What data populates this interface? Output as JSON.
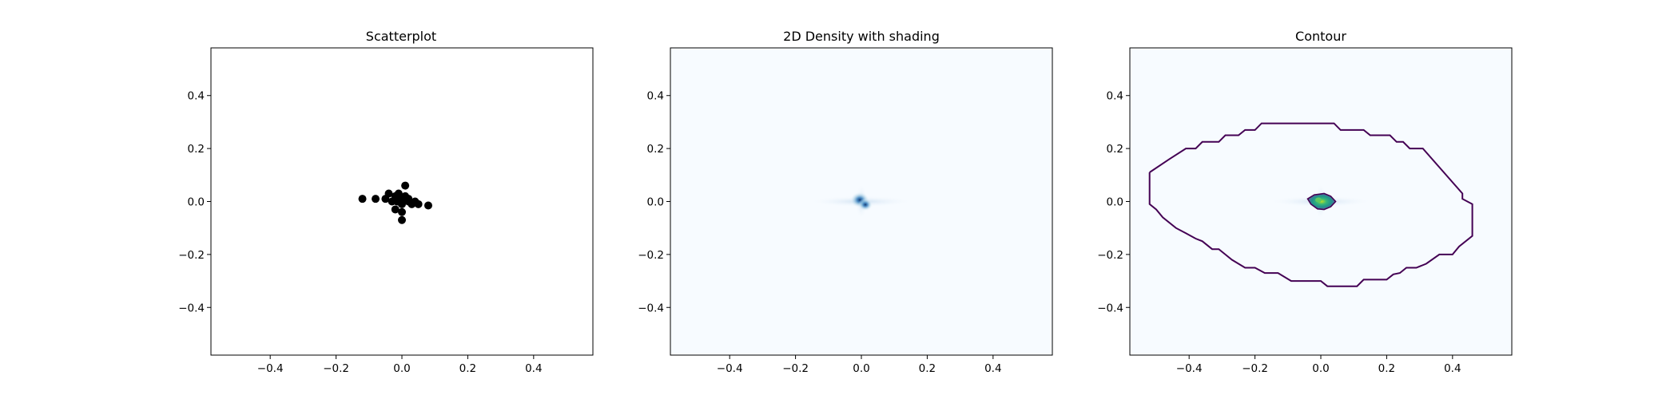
{
  "chart_data": [
    {
      "type": "scatter",
      "title": "Scatterplot",
      "xlabel": "",
      "ylabel": "",
      "xlim": [
        -0.58,
        0.58
      ],
      "ylim": [
        -0.58,
        0.58
      ],
      "xticks": [
        -0.4,
        -0.2,
        0.0,
        0.2,
        0.4
      ],
      "yticks": [
        -0.4,
        -0.2,
        0.0,
        0.2,
        0.4
      ],
      "xtick_labels": [
        "−0.4",
        "−0.2",
        "0.0",
        "0.2",
        "0.4"
      ],
      "ytick_labels": [
        "−0.4",
        "−0.2",
        "0.0",
        "0.2",
        "0.4"
      ],
      "marker_color": "#000000",
      "grid": false,
      "points": [
        [
          -0.12,
          0.01
        ],
        [
          -0.08,
          0.01
        ],
        [
          -0.05,
          0.01
        ],
        [
          -0.04,
          0.03
        ],
        [
          -0.03,
          0.0
        ],
        [
          -0.02,
          -0.03
        ],
        [
          -0.02,
          0.02
        ],
        [
          -0.01,
          0.0
        ],
        [
          -0.01,
          0.03
        ],
        [
          0.0,
          0.01
        ],
        [
          0.0,
          -0.01
        ],
        [
          0.0,
          -0.04
        ],
        [
          0.0,
          -0.07
        ],
        [
          0.01,
          0.02
        ],
        [
          0.01,
          0.06
        ],
        [
          0.02,
          0.0
        ],
        [
          0.02,
          0.01
        ],
        [
          0.03,
          -0.01
        ],
        [
          0.04,
          0.0
        ],
        [
          0.05,
          -0.01
        ],
        [
          0.08,
          -0.015
        ],
        [
          -0.015,
          0.0
        ]
      ]
    },
    {
      "type": "heatmap",
      "title": "2D Density with shading",
      "xlabel": "",
      "ylabel": "",
      "xlim": [
        -0.58,
        0.58
      ],
      "ylim": [
        -0.58,
        0.58
      ],
      "xticks": [
        -0.4,
        -0.2,
        0.0,
        0.2,
        0.4
      ],
      "yticks": [
        -0.4,
        -0.2,
        0.0,
        0.2,
        0.4
      ],
      "xtick_labels": [
        "−0.4",
        "−0.2",
        "0.0",
        "0.2",
        "0.4"
      ],
      "ytick_labels": [
        "−0.4",
        "−0.2",
        "0.0",
        "0.2",
        "0.4"
      ],
      "colormap": "Blues",
      "background_color": "#f7fbff",
      "density_peak": [
        0.0,
        0.0
      ],
      "grid": false
    },
    {
      "type": "heatmap",
      "title": "Contour",
      "xlabel": "",
      "ylabel": "",
      "xlim": [
        -0.58,
        0.58
      ],
      "ylim": [
        -0.58,
        0.58
      ],
      "xticks": [
        -0.4,
        -0.2,
        0.0,
        0.2,
        0.4
      ],
      "yticks": [
        -0.4,
        -0.2,
        0.0,
        0.2,
        0.4
      ],
      "xtick_labels": [
        "−0.4",
        "−0.2",
        "0.0",
        "0.2",
        "0.4"
      ],
      "ytick_labels": [
        "−0.4",
        "−0.2",
        "0.0",
        "0.2",
        "0.4"
      ],
      "colormap": "viridis",
      "background_color": "#f7fbff",
      "outer_contour_color": "#440154",
      "inner_contour_color": "#3b528b",
      "core_color": "#5ec962",
      "outer_contour": [
        [
          -0.52,
          0.11
        ],
        [
          -0.46,
          0.16
        ],
        [
          -0.41,
          0.2
        ],
        [
          -0.38,
          0.2
        ],
        [
          -0.36,
          0.225
        ],
        [
          -0.31,
          0.225
        ],
        [
          -0.29,
          0.25
        ],
        [
          -0.25,
          0.25
        ],
        [
          -0.23,
          0.27
        ],
        [
          -0.2,
          0.27
        ],
        [
          -0.18,
          0.295
        ],
        [
          0.04,
          0.295
        ],
        [
          0.06,
          0.27
        ],
        [
          0.13,
          0.27
        ],
        [
          0.15,
          0.25
        ],
        [
          0.21,
          0.25
        ],
        [
          0.23,
          0.225
        ],
        [
          0.25,
          0.225
        ],
        [
          0.27,
          0.2
        ],
        [
          0.31,
          0.2
        ],
        [
          0.43,
          0.03
        ],
        [
          0.43,
          0.01
        ],
        [
          0.46,
          -0.01
        ],
        [
          0.46,
          -0.13
        ],
        [
          0.42,
          -0.17
        ],
        [
          0.4,
          -0.2
        ],
        [
          0.36,
          -0.2
        ],
        [
          0.32,
          -0.235
        ],
        [
          0.29,
          -0.25
        ],
        [
          0.26,
          -0.25
        ],
        [
          0.24,
          -0.27
        ],
        [
          0.22,
          -0.275
        ],
        [
          0.2,
          -0.295
        ],
        [
          0.13,
          -0.295
        ],
        [
          0.11,
          -0.32
        ],
        [
          0.02,
          -0.32
        ],
        [
          0.0,
          -0.3
        ],
        [
          -0.09,
          -0.3
        ],
        [
          -0.13,
          -0.27
        ],
        [
          -0.17,
          -0.27
        ],
        [
          -0.2,
          -0.25
        ],
        [
          -0.23,
          -0.25
        ],
        [
          -0.27,
          -0.22
        ],
        [
          -0.29,
          -0.2
        ],
        [
          -0.31,
          -0.18
        ],
        [
          -0.33,
          -0.18
        ],
        [
          -0.36,
          -0.15
        ],
        [
          -0.38,
          -0.14
        ],
        [
          -0.41,
          -0.12
        ],
        [
          -0.44,
          -0.1
        ],
        [
          -0.48,
          -0.06
        ],
        [
          -0.5,
          -0.03
        ],
        [
          -0.52,
          -0.01
        ],
        [
          -0.52,
          0.11
        ]
      ],
      "inner_contour": [
        [
          -0.04,
          0.01
        ],
        [
          -0.02,
          0.025
        ],
        [
          0.01,
          0.03
        ],
        [
          0.03,
          0.02
        ],
        [
          0.045,
          0.0
        ],
        [
          0.03,
          -0.02
        ],
        [
          0.01,
          -0.03
        ],
        [
          -0.01,
          -0.028
        ],
        [
          -0.03,
          -0.01
        ],
        [
          -0.04,
          0.01
        ]
      ],
      "grid": false
    }
  ]
}
